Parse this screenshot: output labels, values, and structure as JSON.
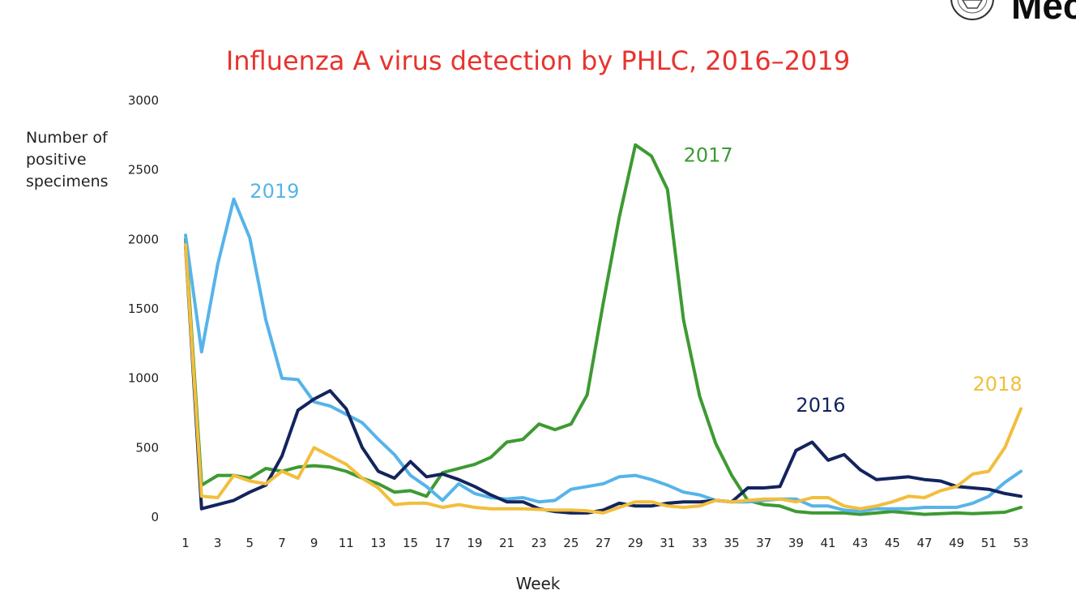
{
  "chart_data": {
    "type": "line",
    "title": "Influenza A virus detection by PHLC, 2016–2019",
    "xlabel": "Week",
    "ylabel": "Number of positive specimens",
    "ylim": [
      0,
      3000
    ],
    "yticks": [
      0,
      500,
      1000,
      1500,
      2000,
      2500,
      3000
    ],
    "xticks": [
      1,
      3,
      5,
      7,
      9,
      11,
      13,
      15,
      17,
      19,
      21,
      23,
      25,
      27,
      29,
      31,
      33,
      35,
      37,
      39,
      41,
      43,
      45,
      47,
      49,
      51,
      53
    ],
    "grid": false,
    "x": [
      1,
      2,
      3,
      4,
      5,
      6,
      7,
      8,
      9,
      10,
      11,
      12,
      13,
      14,
      15,
      16,
      17,
      18,
      19,
      20,
      21,
      22,
      23,
      24,
      25,
      26,
      27,
      28,
      29,
      30,
      31,
      32,
      33,
      34,
      35,
      36,
      37,
      38,
      39,
      40,
      41,
      42,
      43,
      44,
      45,
      46,
      47,
      48,
      49,
      50,
      51,
      52,
      53
    ],
    "series": [
      {
        "name": "2017",
        "color": "#3d9a32",
        "values": [
          2000,
          230,
          300,
          300,
          280,
          350,
          330,
          360,
          370,
          360,
          330,
          280,
          240,
          180,
          190,
          150,
          320,
          350,
          380,
          430,
          540,
          560,
          670,
          630,
          670,
          880,
          1540,
          2160,
          2680,
          2600,
          2360,
          1420,
          870,
          530,
          300,
          120,
          90,
          80,
          40,
          30,
          30,
          30,
          20,
          30,
          40,
          30,
          20,
          25,
          30,
          25,
          30,
          35,
          70
        ]
      },
      {
        "name": "2019",
        "color": "#56b4e9",
        "values": [
          2030,
          1190,
          1820,
          2290,
          2010,
          1420,
          1000,
          990,
          830,
          800,
          740,
          680,
          560,
          450,
          300,
          220,
          120,
          240,
          170,
          140,
          130,
          140,
          110,
          120,
          200,
          220,
          240,
          290,
          300,
          270,
          230,
          180,
          160,
          120,
          110,
          110,
          120,
          130,
          130,
          80,
          80,
          50,
          40,
          60,
          60,
          60,
          70,
          70,
          70,
          100,
          150,
          250,
          330
        ]
      },
      {
        "name": "2016",
        "color": "#13245e",
        "values": [
          1950,
          60,
          90,
          120,
          180,
          230,
          440,
          770,
          850,
          910,
          780,
          500,
          330,
          280,
          400,
          290,
          310,
          270,
          220,
          160,
          110,
          110,
          60,
          40,
          30,
          30,
          50,
          100,
          80,
          80,
          100,
          110,
          110,
          120,
          110,
          210,
          210,
          220,
          480,
          540,
          410,
          450,
          340,
          270,
          280,
          290,
          270,
          260,
          220,
          210,
          200,
          170,
          150
        ]
      },
      {
        "name": "2018",
        "color": "#f2be3c",
        "values": [
          1960,
          150,
          140,
          300,
          260,
          240,
          330,
          280,
          500,
          440,
          380,
          280,
          210,
          90,
          100,
          100,
          70,
          90,
          70,
          60,
          60,
          60,
          55,
          50,
          50,
          45,
          30,
          70,
          110,
          110,
          80,
          70,
          80,
          120,
          110,
          120,
          130,
          130,
          110,
          140,
          140,
          80,
          60,
          80,
          110,
          150,
          140,
          190,
          220,
          310,
          330,
          500,
          780
        ]
      }
    ],
    "annotations": [
      {
        "series": "2019",
        "text": "2019",
        "at_x": 5,
        "at_y": 2300
      },
      {
        "series": "2017",
        "text": "2017",
        "at_x": 32,
        "at_y": 2560
      },
      {
        "series": "2016",
        "text": "2016",
        "at_x": 39,
        "at_y": 760
      },
      {
        "series": "2018",
        "text": "2018",
        "at_x": 50,
        "at_y": 910
      }
    ]
  }
}
